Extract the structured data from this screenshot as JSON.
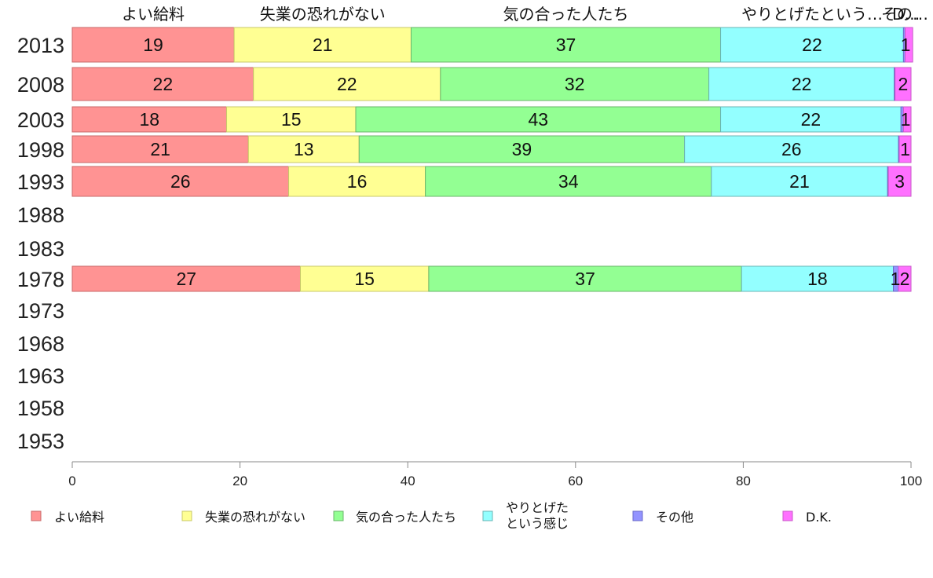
{
  "chart_data": {
    "type": "bar",
    "orientation": "horizontal",
    "stacked": true,
    "title": "",
    "xlabel": "",
    "ylabel": "",
    "xlim": [
      0,
      100
    ],
    "x_ticks": [
      "0",
      "20",
      "40",
      "60",
      "80",
      "100"
    ],
    "categories": [
      "2013",
      "2008",
      "2003",
      "1998",
      "1993",
      "1988",
      "1983",
      "1978",
      "1973",
      "1968",
      "1963",
      "1958",
      "1953"
    ],
    "top_labels": [
      "よい給料",
      "失業の恐れがない",
      "気の合った人たち",
      "やりとげたという感じ",
      "その他",
      "D.K."
    ],
    "series": [
      {
        "name": "よい給料",
        "color": "#ff9393",
        "values": [
          19.3,
          21.6,
          18.4,
          21.0,
          25.8,
          null,
          null,
          27.2,
          null,
          null,
          null,
          null,
          null
        ],
        "labels": [
          "19",
          "22",
          "18",
          "21",
          "26",
          "",
          "",
          "27",
          "",
          "",
          "",
          "",
          ""
        ]
      },
      {
        "name": "失業の恐れがない",
        "color": "#ffff93",
        "values": [
          21.1,
          22.3,
          15.4,
          13.2,
          16.3,
          null,
          null,
          15.3,
          null,
          null,
          null,
          null,
          null
        ],
        "labels": [
          "21",
          "22",
          "15",
          "13",
          "16",
          "",
          "",
          "15",
          "",
          "",
          "",
          "",
          ""
        ]
      },
      {
        "name": "気の合った人たち",
        "color": "#93ff93",
        "values": [
          36.9,
          32.0,
          43.5,
          38.8,
          34.1,
          null,
          null,
          37.3,
          null,
          null,
          null,
          null,
          null
        ],
        "labels": [
          "37",
          "32",
          "43",
          "39",
          "34",
          "",
          "",
          "37",
          "",
          "",
          "",
          "",
          ""
        ]
      },
      {
        "name": "やりとげたという感じ",
        "legend_lines": [
          "やりとげた",
          "という感じ"
        ],
        "color": "#93ffff",
        "values": [
          21.8,
          22.1,
          21.5,
          25.5,
          21.0,
          null,
          null,
          18.1,
          null,
          null,
          null,
          null,
          null
        ],
        "labels": [
          "22",
          "22",
          "22",
          "26",
          "21",
          "",
          "",
          "18",
          "",
          "",
          "",
          "",
          ""
        ]
      },
      {
        "name": "その他",
        "color": "#9393ff",
        "values": [
          0.2,
          0.1,
          0.3,
          0.1,
          0.1,
          null,
          null,
          0.6,
          null,
          null,
          null,
          null,
          null
        ],
        "labels": [
          "",
          "",
          "",
          "",
          "",
          "",
          "",
          "1",
          "",
          "",
          "",
          "",
          ""
        ]
      },
      {
        "name": "D.K.",
        "color": "#ff70ff",
        "values": [
          0.9,
          1.9,
          0.9,
          1.4,
          2.7,
          null,
          null,
          1.5,
          null,
          null,
          null,
          null,
          null
        ],
        "labels": [
          "1",
          "2",
          "1",
          "1",
          "3",
          "",
          "",
          "2",
          "",
          "",
          "",
          "",
          ""
        ]
      }
    ],
    "top_label_texts": [
      "よい給料",
      "失業の恐れがない",
      "気の合った人たち",
      "やりとげたという…",
      "その…",
      "D…"
    ],
    "legend_position": "bottom",
    "grid": false
  }
}
